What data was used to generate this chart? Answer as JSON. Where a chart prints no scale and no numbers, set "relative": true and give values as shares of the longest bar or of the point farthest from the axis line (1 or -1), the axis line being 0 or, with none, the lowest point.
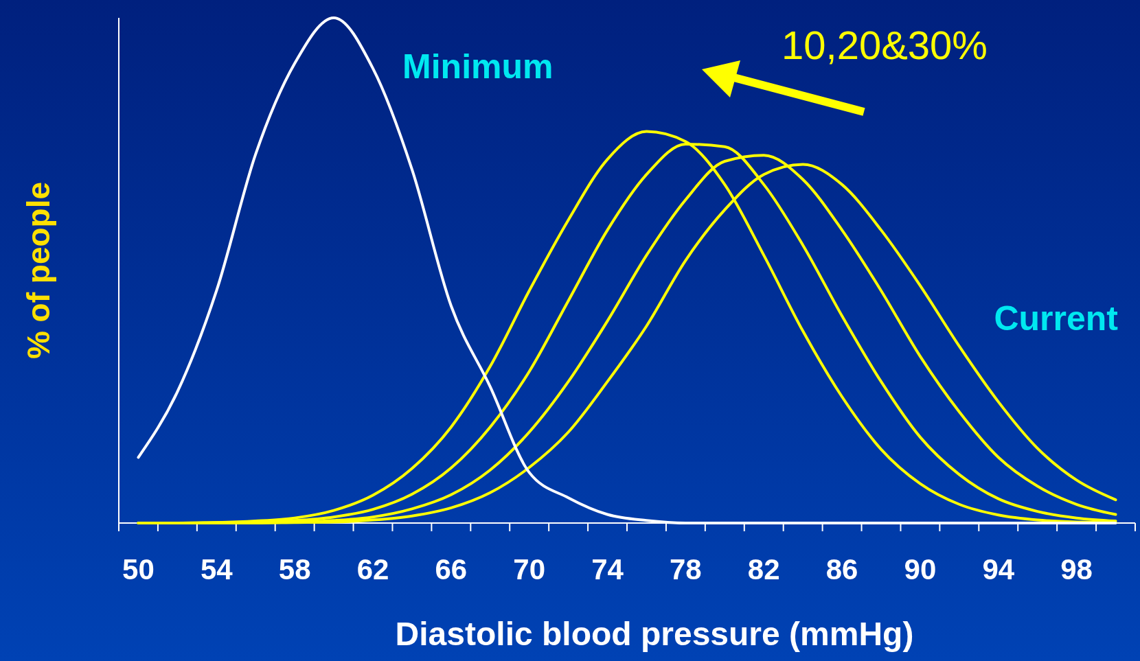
{
  "chart_data": {
    "type": "line",
    "relative": true,
    "xlabel": "Diastolic blood pressure (mmHg)",
    "ylabel": "% of people",
    "x": [
      50,
      52,
      54,
      56,
      58,
      60,
      62,
      64,
      66,
      68,
      70,
      72,
      74,
      76,
      78,
      80,
      82,
      84,
      86,
      88,
      90,
      92,
      94,
      96,
      98,
      100
    ],
    "xlim": [
      49,
      101
    ],
    "xticks": [
      {
        "value": 49,
        "label": null
      },
      50,
      {
        "value": 51,
        "label": null
      },
      {
        "value": 53,
        "label": null
      },
      54,
      {
        "value": 55,
        "label": null
      },
      {
        "value": 57,
        "label": null
      },
      58,
      {
        "value": 59,
        "label": null
      },
      {
        "value": 61,
        "label": null
      },
      62,
      {
        "value": 63,
        "label": null
      },
      {
        "value": 65,
        "label": null
      },
      66,
      {
        "value": 67,
        "label": null
      },
      {
        "value": 69,
        "label": null
      },
      70,
      {
        "value": 71,
        "label": null
      },
      {
        "value": 73,
        "label": null
      },
      74,
      {
        "value": 75,
        "label": null
      },
      {
        "value": 77,
        "label": null
      },
      78,
      {
        "value": 79,
        "label": null
      },
      {
        "value": 81,
        "label": null
      },
      82,
      {
        "value": 83,
        "label": null
      },
      {
        "value": 85,
        "label": null
      },
      86,
      {
        "value": 87,
        "label": null
      },
      {
        "value": 89,
        "label": null
      },
      90,
      {
        "value": 91,
        "label": null
      },
      {
        "value": 93,
        "label": null
      },
      94,
      {
        "value": 95,
        "label": null
      },
      {
        "value": 97,
        "label": null
      },
      98,
      {
        "value": 99,
        "label": null
      },
      {
        "value": 101,
        "label": null
      }
    ],
    "series": [
      {
        "color": "#ffff00",
        "values": [
          0,
          0,
          0.001,
          0.004,
          0.01,
          0.025,
          0.055,
          0.108,
          0.19,
          0.31,
          0.46,
          0.6,
          0.72,
          0.775,
          0.755,
          0.67,
          0.53,
          0.38,
          0.25,
          0.146,
          0.078,
          0.037,
          0.016,
          0.006,
          0.002,
          0.001
        ]
      },
      {
        "color": "#ffff00",
        "values": [
          0,
          0,
          0.001,
          0.002,
          0.005,
          0.012,
          0.027,
          0.057,
          0.109,
          0.19,
          0.3,
          0.44,
          0.58,
          0.69,
          0.75,
          0.745,
          0.67,
          0.55,
          0.41,
          0.28,
          0.17,
          0.096,
          0.048,
          0.023,
          0.01,
          0.004
        ]
      },
      {
        "color": "#ffff00",
        "values": [
          0,
          0,
          0,
          0.001,
          0.002,
          0.005,
          0.012,
          0.028,
          0.056,
          0.105,
          0.18,
          0.28,
          0.4,
          0.53,
          0.64,
          0.716,
          0.728,
          0.68,
          0.58,
          0.46,
          0.33,
          0.22,
          0.13,
          0.073,
          0.037,
          0.017
        ]
      },
      {
        "name": "Current",
        "color": "#ffff00",
        "values": [
          0,
          0,
          0,
          0,
          0.001,
          0.002,
          0.006,
          0.014,
          0.03,
          0.06,
          0.11,
          0.18,
          0.28,
          0.39,
          0.52,
          0.62,
          0.69,
          0.71,
          0.67,
          0.58,
          0.47,
          0.35,
          0.24,
          0.148,
          0.085,
          0.046
        ]
      },
      {
        "name": "Minimum",
        "color": "#ffffff",
        "values": [
          0.13,
          0.26,
          0.46,
          0.73,
          0.91,
          1,
          0.9,
          0.7,
          0.43,
          0.27,
          0.1,
          0.05,
          0.017,
          0.005,
          0,
          0,
          0,
          0,
          0,
          0,
          0,
          0,
          0,
          0,
          0,
          0
        ]
      }
    ],
    "annotations": [
      "10,20&30%"
    ]
  }
}
